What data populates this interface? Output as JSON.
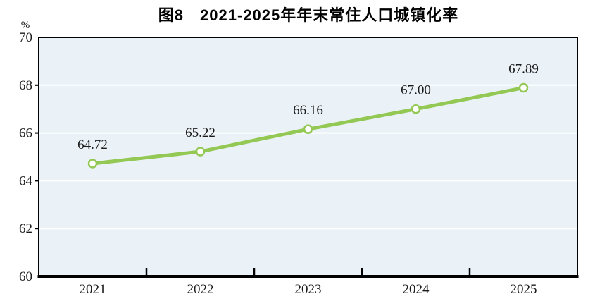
{
  "chart_data": {
    "type": "line",
    "title": "图8　2021-2025年年末常住人口城镇化率",
    "unit_label": "%",
    "categories": [
      "2021",
      "2022",
      "2023",
      "2024",
      "2025"
    ],
    "series": [
      {
        "name": "年末常住人口城镇化率",
        "values": [
          64.72,
          65.22,
          66.16,
          67.0,
          67.89
        ],
        "data_labels": [
          "64.72",
          "65.22",
          "66.16",
          "67.00",
          "67.89"
        ]
      }
    ],
    "ylim": [
      60,
      70
    ],
    "yticks": [
      60,
      62,
      64,
      66,
      68,
      70
    ],
    "grid": true,
    "legend": "none",
    "colors": {
      "line": "#92c853",
      "marker_fill": "#ffffff",
      "plot_bg": "#ebf2f7",
      "gridline": "#ffffff",
      "axis": "#000000",
      "text": "#1a1a1a"
    }
  }
}
